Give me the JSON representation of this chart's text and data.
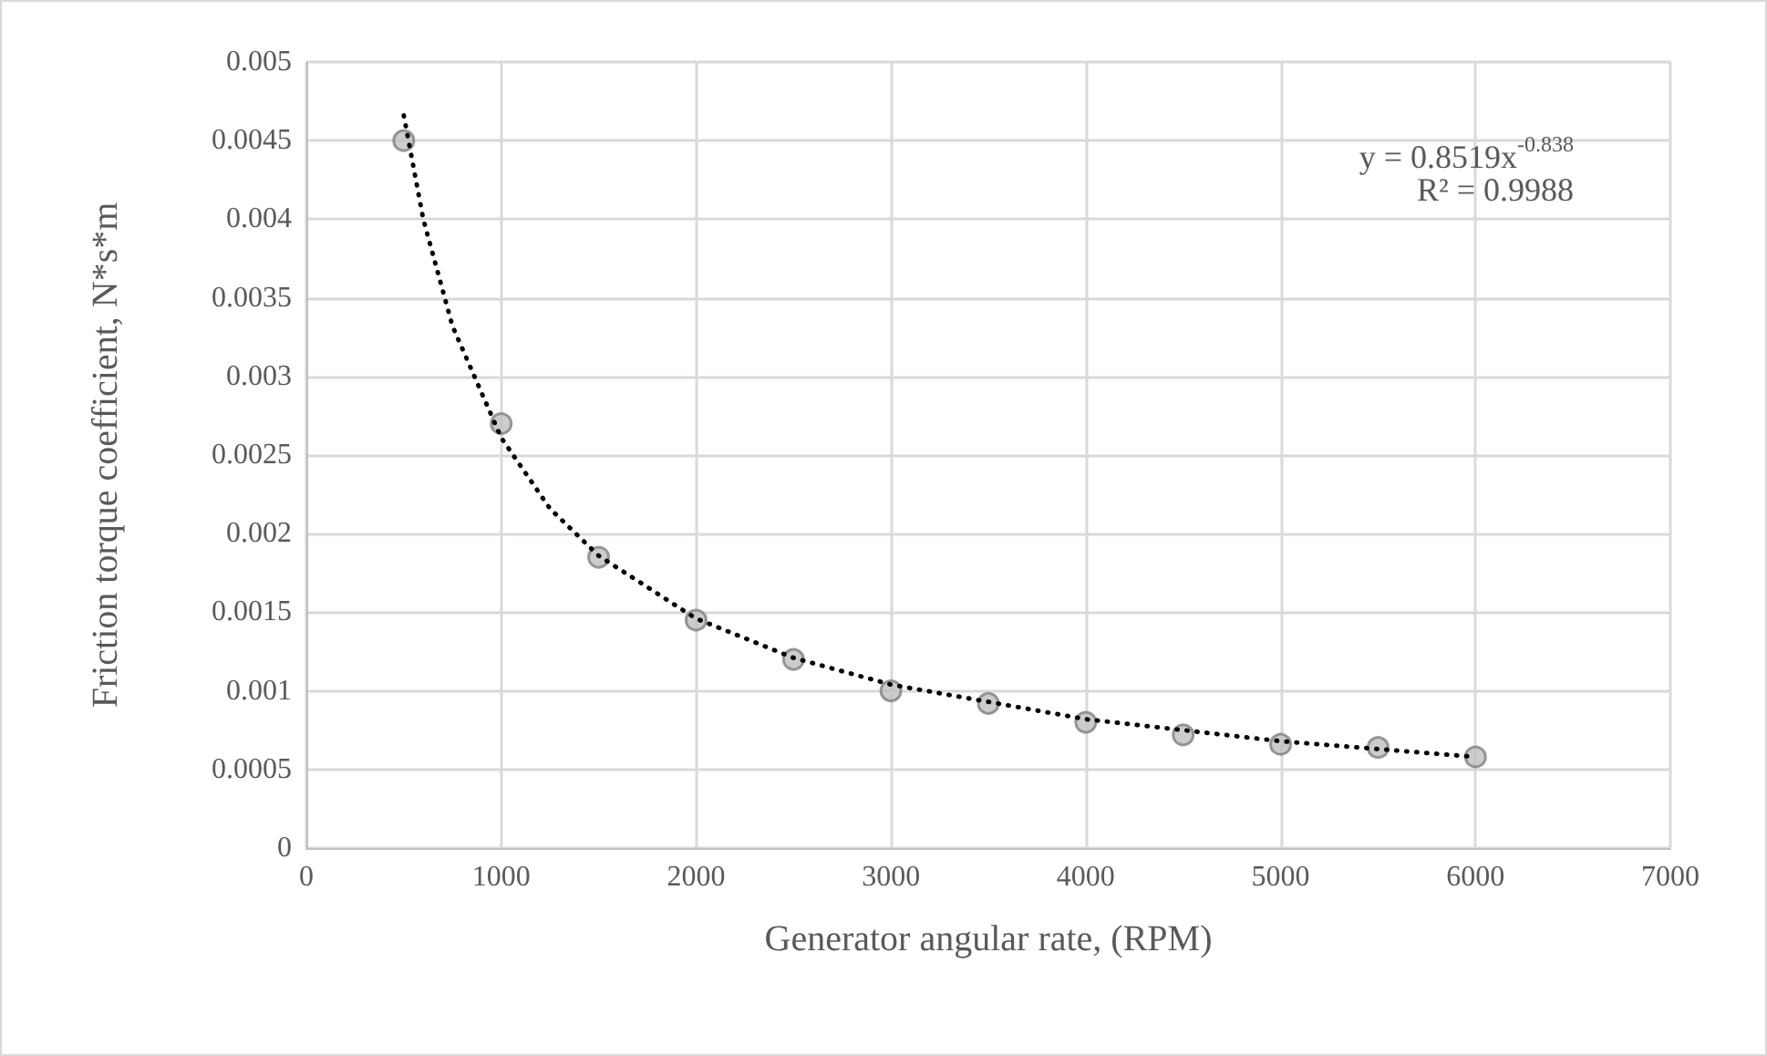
{
  "chart_data": {
    "type": "scatter",
    "xlabel": "Generator angular rate, (RPM)",
    "ylabel": "Friction torque coefficient, N*s*m",
    "x": [
      500,
      1000,
      1500,
      2000,
      2500,
      3000,
      3500,
      4000,
      4500,
      5000,
      5500,
      6000
    ],
    "series": [
      {
        "color": "#bfbfbf",
        "marker": "circle",
        "values": [
          0.0045,
          0.0027,
          0.00185,
          0.00145,
          0.0012,
          0.001,
          0.00092,
          0.0008,
          0.00072,
          0.00066,
          0.00064,
          0.00058
        ]
      },
      {
        "type": "line",
        "color": "#000000",
        "line_style": "dotted",
        "marker": "none",
        "x": [
          500,
          600,
          750,
          1000,
          1250,
          1500,
          2000,
          2500,
          3000,
          4000,
          5000,
          6000
        ],
        "values": [
          0.00466,
          0.004,
          0.00332,
          0.00261,
          0.00216,
          0.00186,
          0.00146,
          0.00121,
          0.00104,
          0.00082,
          0.00068,
          0.00058
        ]
      }
    ],
    "annotations": [
      "y = 0.8519x$^{-0.838}$",
      "R² = 0.9988"
    ],
    "xlim": [
      0,
      7000
    ],
    "xticks": [
      0,
      1000,
      2000,
      3000,
      4000,
      5000,
      6000,
      7000
    ],
    "ylim": [
      0,
      0.005
    ],
    "yticks": [
      0,
      0.0005,
      0.001,
      0.0015,
      0.002,
      0.0025,
      0.003,
      0.0035,
      0.004,
      0.0045,
      0.005
    ],
    "grid": true
  }
}
